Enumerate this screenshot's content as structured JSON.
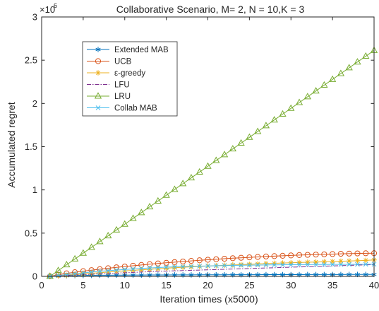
{
  "chart_data": {
    "type": "line",
    "title": "Collaborative Scenario, M= 2, N = 10,K = 3",
    "xlabel": "Iteration times (x5000)",
    "ylabel": "Accumulated regret",
    "y_exponent_label": "×10",
    "y_exponent": "6",
    "xlim": [
      0,
      40
    ],
    "ylim": [
      0,
      3
    ],
    "xticks": [
      "0",
      "5",
      "10",
      "15",
      "20",
      "25",
      "30",
      "35",
      "40"
    ],
    "yticks": [
      "0",
      "0.5",
      "1",
      "1.5",
      "2",
      "2.5",
      "3"
    ],
    "legend_position": "upper-left",
    "grid": false,
    "x": [
      1,
      2,
      3,
      4,
      5,
      6,
      7,
      8,
      9,
      10,
      11,
      12,
      13,
      14,
      15,
      16,
      17,
      18,
      19,
      20,
      21,
      22,
      23,
      24,
      25,
      26,
      27,
      28,
      29,
      30,
      31,
      32,
      33,
      34,
      35,
      36,
      37,
      38,
      39,
      40
    ],
    "series": [
      {
        "name": "Extended MAB",
        "color": "#0072BD",
        "marker": "asterisk",
        "dash": "",
        "values": [
          0.0,
          0.006,
          0.008,
          0.01,
          0.011,
          0.012,
          0.013,
          0.013,
          0.014,
          0.014,
          0.015,
          0.015,
          0.016,
          0.016,
          0.016,
          0.017,
          0.017,
          0.017,
          0.018,
          0.018,
          0.018,
          0.018,
          0.019,
          0.019,
          0.019,
          0.019,
          0.02,
          0.02,
          0.02,
          0.02,
          0.02,
          0.021,
          0.021,
          0.021,
          0.021,
          0.021,
          0.022,
          0.022,
          0.022,
          0.022
        ]
      },
      {
        "name": "UCB",
        "color": "#D95319",
        "marker": "circle",
        "dash": "",
        "values": [
          0.0,
          0.02,
          0.035,
          0.048,
          0.06,
          0.072,
          0.083,
          0.094,
          0.104,
          0.114,
          0.123,
          0.132,
          0.141,
          0.149,
          0.157,
          0.165,
          0.172,
          0.179,
          0.186,
          0.192,
          0.198,
          0.204,
          0.21,
          0.215,
          0.22,
          0.225,
          0.23,
          0.234,
          0.238,
          0.242,
          0.246,
          0.249,
          0.252,
          0.255,
          0.258,
          0.261,
          0.263,
          0.265,
          0.267,
          0.268
        ]
      },
      {
        "name": "ε-greedy",
        "color": "#EDB120",
        "marker": "star",
        "dash": "",
        "values": [
          0.0,
          0.005,
          0.012,
          0.02,
          0.028,
          0.036,
          0.043,
          0.05,
          0.057,
          0.063,
          0.07,
          0.076,
          0.082,
          0.088,
          0.094,
          0.1,
          0.105,
          0.11,
          0.115,
          0.12,
          0.124,
          0.128,
          0.132,
          0.136,
          0.14,
          0.144,
          0.148,
          0.151,
          0.154,
          0.157,
          0.16,
          0.163,
          0.166,
          0.169,
          0.172,
          0.175,
          0.178,
          0.181,
          0.185,
          0.19
        ]
      },
      {
        "name": "LFU",
        "color": "#7E2F8E",
        "marker": "none",
        "dash": "6 2 1.5 2",
        "values": [
          0.0,
          0.005,
          0.01,
          0.015,
          0.02,
          0.025,
          0.03,
          0.034,
          0.038,
          0.042,
          0.046,
          0.05,
          0.054,
          0.058,
          0.061,
          0.064,
          0.067,
          0.07,
          0.073,
          0.076,
          0.079,
          0.082,
          0.085,
          0.088,
          0.091,
          0.094,
          0.097,
          0.1,
          0.103,
          0.106,
          0.109,
          0.112,
          0.115,
          0.118,
          0.121,
          0.124,
          0.127,
          0.13,
          0.133,
          0.136
        ]
      },
      {
        "name": "LRU",
        "color": "#77AC30",
        "marker": "triangle",
        "dash": "",
        "values": [
          0.0,
          0.067,
          0.134,
          0.201,
          0.268,
          0.335,
          0.402,
          0.469,
          0.536,
          0.603,
          0.67,
          0.737,
          0.804,
          0.871,
          0.938,
          1.005,
          1.072,
          1.139,
          1.206,
          1.273,
          1.34,
          1.407,
          1.474,
          1.541,
          1.608,
          1.675,
          1.742,
          1.809,
          1.876,
          1.943,
          2.01,
          2.077,
          2.144,
          2.211,
          2.278,
          2.345,
          2.412,
          2.479,
          2.546,
          2.613
        ]
      },
      {
        "name": "Collab MAB",
        "color": "#4DBEEE",
        "marker": "x",
        "dash": "",
        "values": [
          0.0,
          0.01,
          0.02,
          0.03,
          0.04,
          0.05,
          0.058,
          0.066,
          0.073,
          0.08,
          0.086,
          0.092,
          0.097,
          0.102,
          0.106,
          0.11,
          0.113,
          0.116,
          0.119,
          0.121,
          0.123,
          0.125,
          0.127,
          0.129,
          0.13,
          0.131,
          0.132,
          0.133,
          0.134,
          0.135,
          0.136,
          0.136,
          0.137,
          0.137,
          0.138,
          0.138,
          0.139,
          0.139,
          0.14,
          0.14
        ]
      }
    ]
  }
}
